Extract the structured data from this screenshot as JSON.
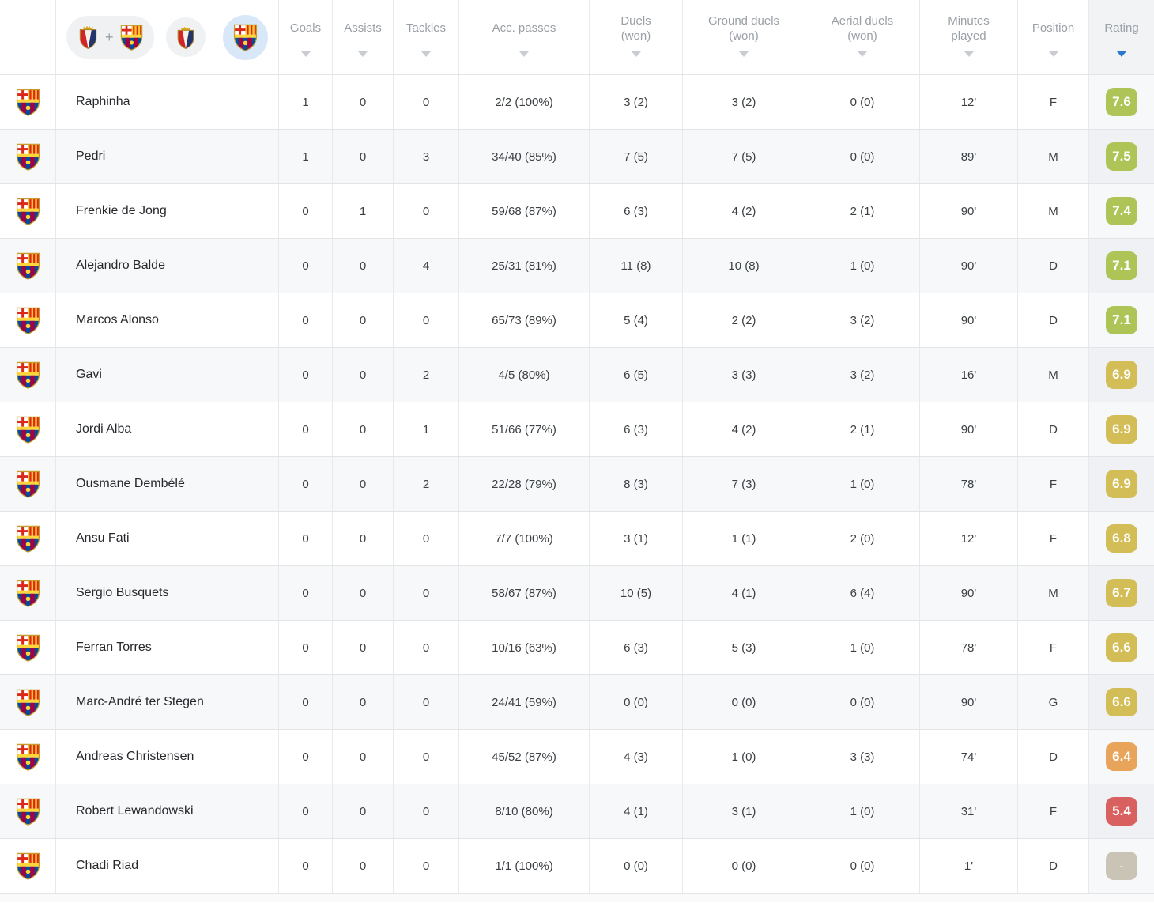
{
  "table": {
    "filters": {
      "plus": "+",
      "items": [
        {
          "id": "both-teams",
          "label": "Osasuna + Barcelona",
          "selected": false
        },
        {
          "id": "osasuna",
          "label": "Osasuna",
          "selected": false
        },
        {
          "id": "barcelona",
          "label": "Barcelona",
          "selected": true
        }
      ]
    },
    "columns": [
      {
        "key": "goals",
        "label": "Goals",
        "sorted": false
      },
      {
        "key": "assists",
        "label": "Assists",
        "sorted": false
      },
      {
        "key": "tackles",
        "label": "Tackles",
        "sorted": false
      },
      {
        "key": "acc_passes",
        "label": "Acc. passes",
        "sorted": false
      },
      {
        "key": "duels",
        "label": "Duels\n(won)",
        "sorted": false
      },
      {
        "key": "ground_duels",
        "label": "Ground duels\n(won)",
        "sorted": false
      },
      {
        "key": "aerial_duels",
        "label": "Aerial duels\n(won)",
        "sorted": false
      },
      {
        "key": "minutes",
        "label": "Minutes\nplayed",
        "sorted": false
      },
      {
        "key": "position",
        "label": "Position",
        "sorted": false
      },
      {
        "key": "rating",
        "label": "Rating",
        "sorted": true,
        "direction": "desc"
      }
    ],
    "rows": [
      {
        "player": "Raphinha",
        "goals": "1",
        "assists": "0",
        "tackles": "0",
        "acc_passes": "2/2 (100%)",
        "duels": "3 (2)",
        "ground_duels": "3 (2)",
        "aerial_duels": "0 (0)",
        "minutes": "12'",
        "position": "F",
        "rating": "7.6",
        "rating_level": "green"
      },
      {
        "player": "Pedri",
        "goals": "1",
        "assists": "0",
        "tackles": "3",
        "acc_passes": "34/40 (85%)",
        "duels": "7 (5)",
        "ground_duels": "7 (5)",
        "aerial_duels": "0 (0)",
        "minutes": "89'",
        "position": "M",
        "rating": "7.5",
        "rating_level": "green"
      },
      {
        "player": "Frenkie de Jong",
        "goals": "0",
        "assists": "1",
        "tackles": "0",
        "acc_passes": "59/68 (87%)",
        "duels": "6 (3)",
        "ground_duels": "4 (2)",
        "aerial_duels": "2 (1)",
        "minutes": "90'",
        "position": "M",
        "rating": "7.4",
        "rating_level": "green"
      },
      {
        "player": "Alejandro Balde",
        "goals": "0",
        "assists": "0",
        "tackles": "4",
        "acc_passes": "25/31 (81%)",
        "duels": "11 (8)",
        "ground_duels": "10 (8)",
        "aerial_duels": "1 (0)",
        "minutes": "90'",
        "position": "D",
        "rating": "7.1",
        "rating_level": "green"
      },
      {
        "player": "Marcos Alonso",
        "goals": "0",
        "assists": "0",
        "tackles": "0",
        "acc_passes": "65/73 (89%)",
        "duels": "5 (4)",
        "ground_duels": "2 (2)",
        "aerial_duels": "3 (2)",
        "minutes": "90'",
        "position": "D",
        "rating": "7.1",
        "rating_level": "green"
      },
      {
        "player": "Gavi",
        "goals": "0",
        "assists": "0",
        "tackles": "2",
        "acc_passes": "4/5 (80%)",
        "duels": "6 (5)",
        "ground_duels": "3 (3)",
        "aerial_duels": "3 (2)",
        "minutes": "16'",
        "position": "M",
        "rating": "6.9",
        "rating_level": "gold"
      },
      {
        "player": "Jordi Alba",
        "goals": "0",
        "assists": "0",
        "tackles": "1",
        "acc_passes": "51/66 (77%)",
        "duels": "6 (3)",
        "ground_duels": "4 (2)",
        "aerial_duels": "2 (1)",
        "minutes": "90'",
        "position": "D",
        "rating": "6.9",
        "rating_level": "gold"
      },
      {
        "player": "Ousmane Dembélé",
        "goals": "0",
        "assists": "0",
        "tackles": "2",
        "acc_passes": "22/28 (79%)",
        "duels": "8 (3)",
        "ground_duels": "7 (3)",
        "aerial_duels": "1 (0)",
        "minutes": "78'",
        "position": "F",
        "rating": "6.9",
        "rating_level": "gold"
      },
      {
        "player": "Ansu Fati",
        "goals": "0",
        "assists": "0",
        "tackles": "0",
        "acc_passes": "7/7 (100%)",
        "duels": "3 (1)",
        "ground_duels": "1 (1)",
        "aerial_duels": "2 (0)",
        "minutes": "12'",
        "position": "F",
        "rating": "6.8",
        "rating_level": "gold"
      },
      {
        "player": "Sergio Busquets",
        "goals": "0",
        "assists": "0",
        "tackles": "0",
        "acc_passes": "58/67 (87%)",
        "duels": "10 (5)",
        "ground_duels": "4 (1)",
        "aerial_duels": "6 (4)",
        "minutes": "90'",
        "position": "M",
        "rating": "6.7",
        "rating_level": "gold"
      },
      {
        "player": "Ferran Torres",
        "goals": "0",
        "assists": "0",
        "tackles": "0",
        "acc_passes": "10/16 (63%)",
        "duels": "6 (3)",
        "ground_duels": "5 (3)",
        "aerial_duels": "1 (0)",
        "minutes": "78'",
        "position": "F",
        "rating": "6.6",
        "rating_level": "gold"
      },
      {
        "player": "Marc-André ter Stegen",
        "goals": "0",
        "assists": "0",
        "tackles": "0",
        "acc_passes": "24/41 (59%)",
        "duels": "0 (0)",
        "ground_duels": "0 (0)",
        "aerial_duels": "0 (0)",
        "minutes": "90'",
        "position": "G",
        "rating": "6.6",
        "rating_level": "gold"
      },
      {
        "player": "Andreas Christensen",
        "goals": "0",
        "assists": "0",
        "tackles": "0",
        "acc_passes": "45/52 (87%)",
        "duels": "4 (3)",
        "ground_duels": "1 (0)",
        "aerial_duels": "3 (3)",
        "minutes": "74'",
        "position": "D",
        "rating": "6.4",
        "rating_level": "orange"
      },
      {
        "player": "Robert Lewandowski",
        "goals": "0",
        "assists": "0",
        "tackles": "0",
        "acc_passes": "8/10 (80%)",
        "duels": "4 (1)",
        "ground_duels": "3 (1)",
        "aerial_duels": "1 (0)",
        "minutes": "31'",
        "position": "F",
        "rating": "5.4",
        "rating_level": "red"
      },
      {
        "player": "Chadi Riad",
        "goals": "0",
        "assists": "0",
        "tackles": "0",
        "acc_passes": "1/1 (100%)",
        "duels": "0 (0)",
        "ground_duels": "0 (0)",
        "aerial_duels": "0 (0)",
        "minutes": "1'",
        "position": "D",
        "rating": "-",
        "rating_level": "none"
      }
    ]
  },
  "icons": {
    "barcelona": "barcelona-crest-icon",
    "osasuna": "osasuna-crest-icon",
    "sort": "sort-arrow-icon"
  },
  "colors": {
    "rating_green": "#aec456",
    "rating_gold": "#d3bd57",
    "rating_orange": "#e9a45c",
    "rating_red": "#d8605f",
    "rating_none": "#cac4b7",
    "sort_active": "#2b77d0",
    "sort_inactive": "#c9cdd2",
    "selected_filter_bg": "#d9e8f8",
    "row_alt_bg": "#f7f8fa"
  }
}
